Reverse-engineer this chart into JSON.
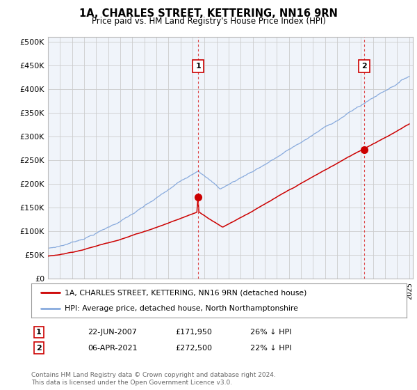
{
  "title": "1A, CHARLES STREET, KETTERING, NN16 9RN",
  "subtitle": "Price paid vs. HM Land Registry's House Price Index (HPI)",
  "ylim": [
    0,
    510000
  ],
  "yticks": [
    0,
    50000,
    100000,
    150000,
    200000,
    250000,
    300000,
    350000,
    400000,
    450000,
    500000
  ],
  "xlim_start": 1995.0,
  "xlim_end": 2025.3,
  "background_color": "#ffffff",
  "chart_bg_color": "#f0f4fa",
  "grid_color": "#cccccc",
  "sale1_x": 2007.47,
  "sale1_y": 171950,
  "sale1_label": "1",
  "sale2_x": 2021.26,
  "sale2_y": 272500,
  "sale2_label": "2",
  "red_line_color": "#cc0000",
  "blue_line_color": "#88aadd",
  "vline_color": "#dd4444",
  "legend_line1": "1A, CHARLES STREET, KETTERING, NN16 9RN (detached house)",
  "legend_line2": "HPI: Average price, detached house, North Northamptonshire",
  "table_row1_num": "1",
  "table_row1_date": "22-JUN-2007",
  "table_row1_price": "£171,950",
  "table_row1_hpi": "26% ↓ HPI",
  "table_row2_num": "2",
  "table_row2_date": "06-APR-2021",
  "table_row2_price": "£272,500",
  "table_row2_hpi": "22% ↓ HPI",
  "footnote": "Contains HM Land Registry data © Crown copyright and database right 2024.\nThis data is licensed under the Open Government Licence v3.0."
}
